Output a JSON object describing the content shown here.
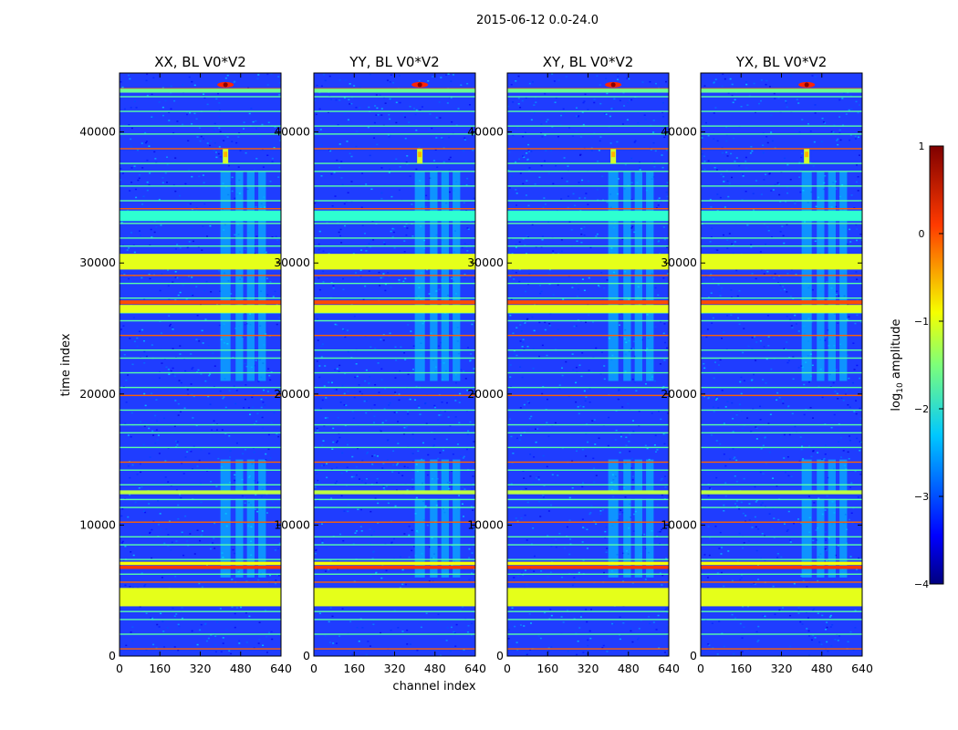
{
  "figure": {
    "suptitle": "2015-06-12 0.0-24.0"
  },
  "colors": {
    "cmap": "jet",
    "background_level": "#1f3dff",
    "rfi_band": "#8cff6a",
    "strong_rfi": "#ff3a00"
  },
  "chart_data": {
    "type": "heatmap",
    "xlabel": "channel index",
    "ylabel": "time index",
    "xlim": [
      0,
      640
    ],
    "ylim": [
      0,
      44500
    ],
    "xticks": [
      0,
      160,
      320,
      480,
      640
    ],
    "yticks": [
      0,
      10000,
      20000,
      30000,
      40000
    ],
    "grid": false,
    "panels": [
      {
        "title": "XX, BL V0*V2",
        "corner_marker_channel": 420
      },
      {
        "title": "YY, BL V0*V2",
        "corner_marker_channel": 420
      },
      {
        "title": "XY, BL V0*V2",
        "corner_marker_channel": 420
      },
      {
        "title": "YX, BL V0*V2",
        "corner_marker_channel": 420
      }
    ],
    "horizontal_bands": [
      {
        "t0": 3800,
        "t1": 5200,
        "log_amp": -1.0
      },
      {
        "t0": 6650,
        "t1": 6900,
        "log_amp": 0.1
      },
      {
        "t0": 6950,
        "t1": 7200,
        "log_amp": -0.9
      },
      {
        "t0": 12350,
        "t1": 12650,
        "log_amp": -1.2
      },
      {
        "t0": 26200,
        "t1": 26800,
        "log_amp": -1.0
      },
      {
        "t0": 26850,
        "t1": 27150,
        "log_amp": 0.0
      },
      {
        "t0": 29500,
        "t1": 30700,
        "log_amp": -1.0
      },
      {
        "t0": 33200,
        "t1": 34000,
        "log_amp": -1.9
      },
      {
        "t0": 43000,
        "t1": 43300,
        "log_amp": -1.6
      }
    ],
    "stripes": {
      "time_ranges": [
        [
          6000,
          12000
        ],
        [
          12500,
          15000
        ],
        [
          21000,
          37000
        ]
      ],
      "channel_segments": [
        [
          400,
          440
        ],
        [
          460,
          490
        ],
        [
          505,
          535
        ],
        [
          550,
          580
        ]
      ]
    },
    "colorbar": {
      "label": "log10 amplitude",
      "ticks": [
        1,
        0,
        -1,
        -2,
        -3,
        -4
      ],
      "range": [
        -4,
        1
      ]
    }
  }
}
